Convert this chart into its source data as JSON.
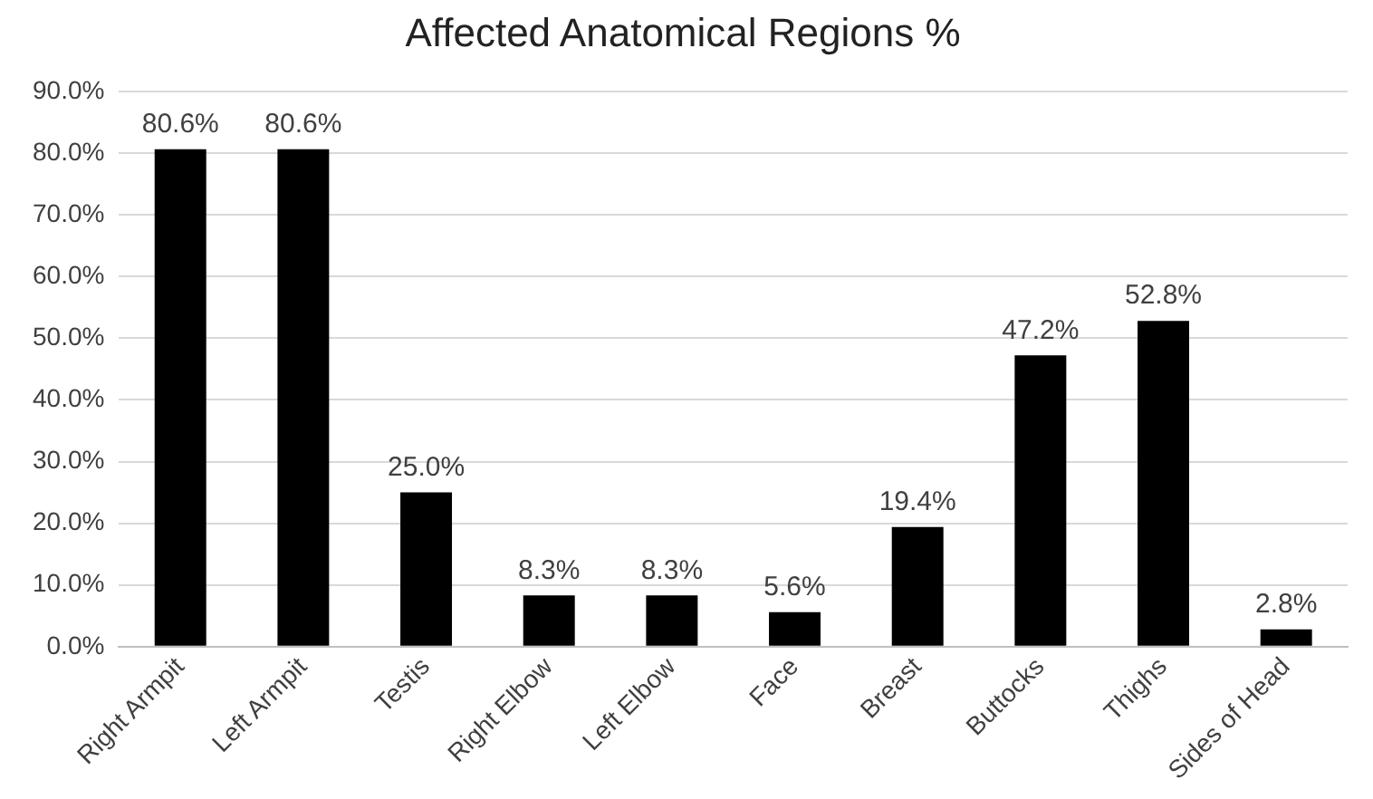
{
  "chart_data": {
    "type": "bar",
    "title": "Affected Anatomical Regions %",
    "categories": [
      "Right Armpit",
      "Left Armpit",
      "Testis",
      "Right Elbow",
      "Left Elbow",
      "Face",
      "Breast",
      "Buttocks",
      "Thighs",
      "Sides of Head"
    ],
    "values": [
      80.6,
      80.6,
      25.0,
      8.3,
      8.3,
      5.6,
      19.4,
      47.2,
      52.8,
      2.8
    ],
    "value_labels": [
      "80.6%",
      "80.6%",
      "25.0%",
      "8.3%",
      "8.3%",
      "5.6%",
      "19.4%",
      "47.2%",
      "52.8%",
      "2.8%"
    ],
    "color": "#000000",
    "ylim": [
      0,
      90
    ],
    "yticks": [
      {
        "value": 0,
        "label": "0.0%"
      },
      {
        "value": 10,
        "label": "10.0%"
      },
      {
        "value": 20,
        "label": "20.0%"
      },
      {
        "value": 30,
        "label": "30.0%"
      },
      {
        "value": 40,
        "label": "40.0%"
      },
      {
        "value": 50,
        "label": "50.0%"
      },
      {
        "value": 60,
        "label": "60.0%"
      },
      {
        "value": 70,
        "label": "70.0%"
      },
      {
        "value": 80,
        "label": "80.0%"
      },
      {
        "value": 90,
        "label": "90.0%"
      }
    ],
    "grid": "y"
  }
}
